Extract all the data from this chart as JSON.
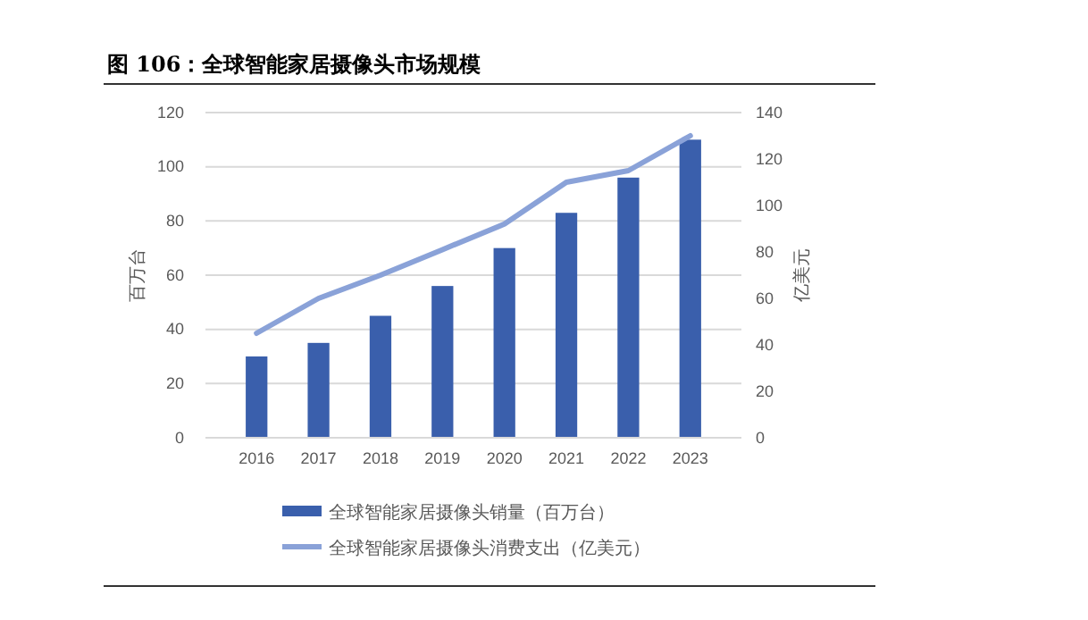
{
  "chart_data": {
    "type": "bar",
    "title": "图 106：全球智能家居摄像头市场规模",
    "ylabel": "百万台",
    "y2label": "亿美元",
    "categories": [
      "2016",
      "2017",
      "2018",
      "2019",
      "2020",
      "2021",
      "2022",
      "2023"
    ],
    "series": [
      {
        "name": "全球智能家居摄像头销量（百万台）",
        "color": "#3a5fac",
        "values": [
          30,
          35,
          45,
          56,
          70,
          83,
          96,
          110
        ]
      },
      {
        "name": "全球智能家居摄像头消费支出（亿美元）",
        "type": "line",
        "axis": "y2",
        "color": "#8aa2d8",
        "values": [
          45,
          60,
          70,
          81,
          92,
          110,
          115,
          130
        ]
      }
    ],
    "ylim": [
      0,
      120
    ],
    "yticks": [
      0,
      20,
      40,
      60,
      80,
      100,
      120
    ],
    "y2lim": [
      0,
      140
    ],
    "y2ticks": [
      0,
      20,
      40,
      60,
      80,
      100,
      120,
      140
    ],
    "grid": "y",
    "legend": "bottom",
    "marker": "none",
    "line_style": "solid"
  }
}
